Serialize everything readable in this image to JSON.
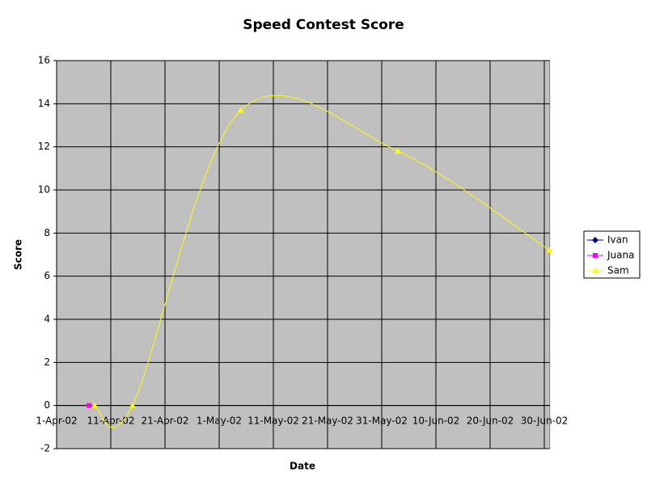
{
  "chart_data": {
    "type": "line",
    "title": "Speed Contest Score",
    "x_label": "Date",
    "y_label": "Score",
    "series": [
      {
        "name": "Ivan",
        "color": "#000080",
        "marker": "diamond",
        "x": [],
        "values": []
      },
      {
        "name": "Juana",
        "color": "#ff00ff",
        "marker": "square",
        "x": [
          "2002-04-07"
        ],
        "values": [
          0
        ]
      },
      {
        "name": "Sam",
        "color": "#ffff00",
        "marker": "triangle",
        "x": [
          "2002-04-08",
          "2002-04-15",
          "2002-05-05",
          "2002-06-03",
          "2002-07-01"
        ],
        "values": [
          0,
          0,
          13.7,
          11.8,
          7.2
        ]
      }
    ],
    "xlim": [
      "2002-04-01",
      "2002-07-01"
    ],
    "xticks": [
      {
        "value": "2002-04-01",
        "label": "1-Apr-02"
      },
      {
        "value": "2002-04-11",
        "label": "11-Apr-02"
      },
      {
        "value": "2002-04-21",
        "label": "21-Apr-02"
      },
      {
        "value": "2002-05-01",
        "label": "1-May-02"
      },
      {
        "value": "2002-05-11",
        "label": "11-May-02"
      },
      {
        "value": "2002-05-21",
        "label": "21-May-02"
      },
      {
        "value": "2002-05-31",
        "label": "31-May-02"
      },
      {
        "value": "2002-06-10",
        "label": "10-Jun-02"
      },
      {
        "value": "2002-06-20",
        "label": "20-Jun-02"
      },
      {
        "value": "2002-06-30",
        "label": "30-Jun-02"
      }
    ],
    "ylim": [
      -2,
      16
    ],
    "yticks": [
      -2,
      0,
      2,
      4,
      6,
      8,
      10,
      12,
      14,
      16
    ],
    "grid": true,
    "smooth": true,
    "legend": "right",
    "plot_background": "#c0c0c0"
  }
}
